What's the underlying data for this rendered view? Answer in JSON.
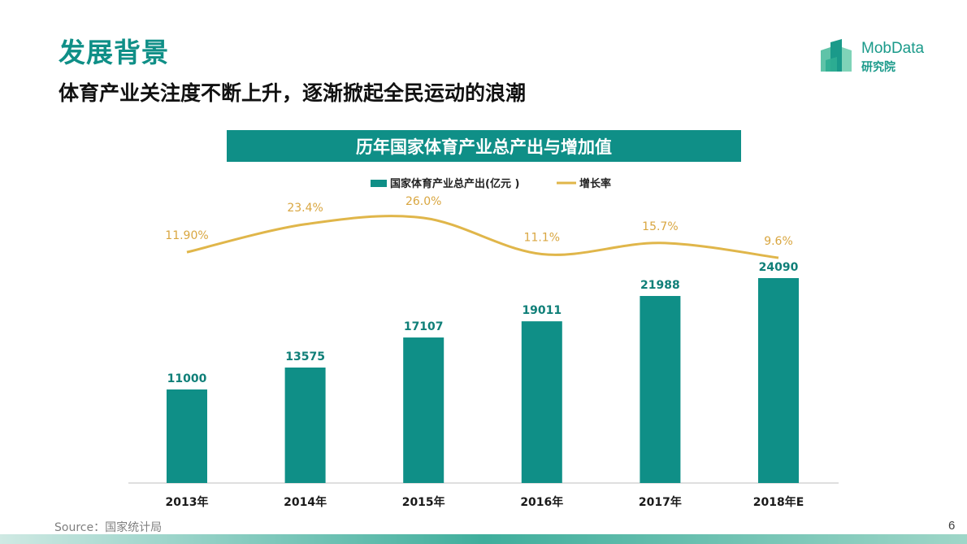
{
  "slide": {
    "title": "发展背景",
    "subtitle": "体育产业关注度不断上升，逐渐掀起全民运动的浪潮",
    "source": "Source：国家统计局",
    "page_number": "6"
  },
  "logo": {
    "name": "MobData",
    "sub": "研究院",
    "icon": "building-blocks-logo-icon"
  },
  "colors": {
    "accent": "#0f8f87",
    "line": "#e0b64a",
    "growth_label": "#d9a640",
    "value_label": "#0f7f78"
  },
  "chart_data": {
    "type": "bar",
    "title": "历年国家体育产业总产出与增加值",
    "categories": [
      "2013年",
      "2014年",
      "2015年",
      "2016年",
      "2017年",
      "2018年E"
    ],
    "series": [
      {
        "name": "国家体育产业总产出(亿元 )",
        "type": "bar",
        "values": [
          11000,
          13575,
          17107,
          19011,
          21988,
          24090
        ],
        "labels": [
          "11000",
          "13575",
          "17107",
          "19011",
          "21988",
          "24090"
        ]
      },
      {
        "name": "增长率",
        "type": "line",
        "values": [
          11.9,
          23.4,
          26.0,
          11.1,
          15.7,
          9.6
        ],
        "labels": [
          "11.90%",
          "23.4%",
          "26.0%",
          "11.1%",
          "15.7%",
          "9.6%"
        ]
      }
    ],
    "legend_position": "top-center",
    "grid": false
  }
}
